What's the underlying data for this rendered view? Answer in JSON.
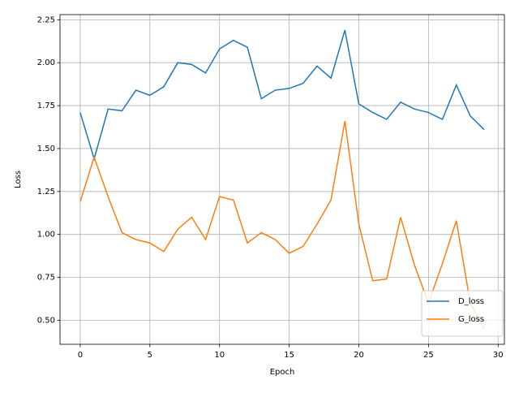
{
  "chart_data": {
    "type": "line",
    "xlabel": "Epoch",
    "ylabel": "Loss",
    "x": [
      0,
      1,
      2,
      3,
      4,
      5,
      6,
      7,
      8,
      9,
      10,
      11,
      12,
      13,
      14,
      15,
      16,
      17,
      18,
      19,
      20,
      21,
      22,
      23,
      24,
      25,
      26,
      27,
      28,
      29
    ],
    "series": [
      {
        "name": "D_loss",
        "color": "#1f77b4",
        "values": [
          1.71,
          1.44,
          1.73,
          1.72,
          1.84,
          1.81,
          1.86,
          2.0,
          1.99,
          1.94,
          2.08,
          2.13,
          2.09,
          1.79,
          1.84,
          1.85,
          1.88,
          1.98,
          1.91,
          2.19,
          1.76,
          1.71,
          1.67,
          1.77,
          1.73,
          1.71,
          1.67,
          1.87,
          1.69,
          1.61
        ]
      },
      {
        "name": "G_loss",
        "color": "#ff7f0e",
        "values": [
          1.19,
          1.45,
          1.22,
          1.01,
          0.97,
          0.95,
          0.9,
          1.03,
          1.1,
          0.97,
          1.22,
          1.2,
          0.95,
          1.01,
          0.97,
          0.89,
          0.93,
          1.06,
          1.2,
          1.66,
          1.06,
          0.73,
          0.74,
          1.1,
          0.82,
          0.6,
          0.83,
          1.08,
          0.6,
          0.45
        ]
      }
    ],
    "xlim": [
      -1.45,
      30.45
    ],
    "xticks": [
      0,
      5,
      10,
      15,
      20,
      25,
      30
    ],
    "ylim": [
      0.36,
      2.28
    ],
    "yticks": [
      {
        "value": 0.5,
        "label": "0.50"
      },
      {
        "value": 0.75,
        "label": "0.75"
      },
      {
        "value": 1.0,
        "label": "1.00"
      },
      {
        "value": 1.25,
        "label": "1.25"
      },
      {
        "value": 1.5,
        "label": "1.50"
      },
      {
        "value": 1.75,
        "label": "1.75"
      },
      {
        "value": 2.0,
        "label": "2.00"
      },
      {
        "value": 2.25,
        "label": "2.25"
      }
    ],
    "grid": true,
    "legend": "lower right"
  }
}
